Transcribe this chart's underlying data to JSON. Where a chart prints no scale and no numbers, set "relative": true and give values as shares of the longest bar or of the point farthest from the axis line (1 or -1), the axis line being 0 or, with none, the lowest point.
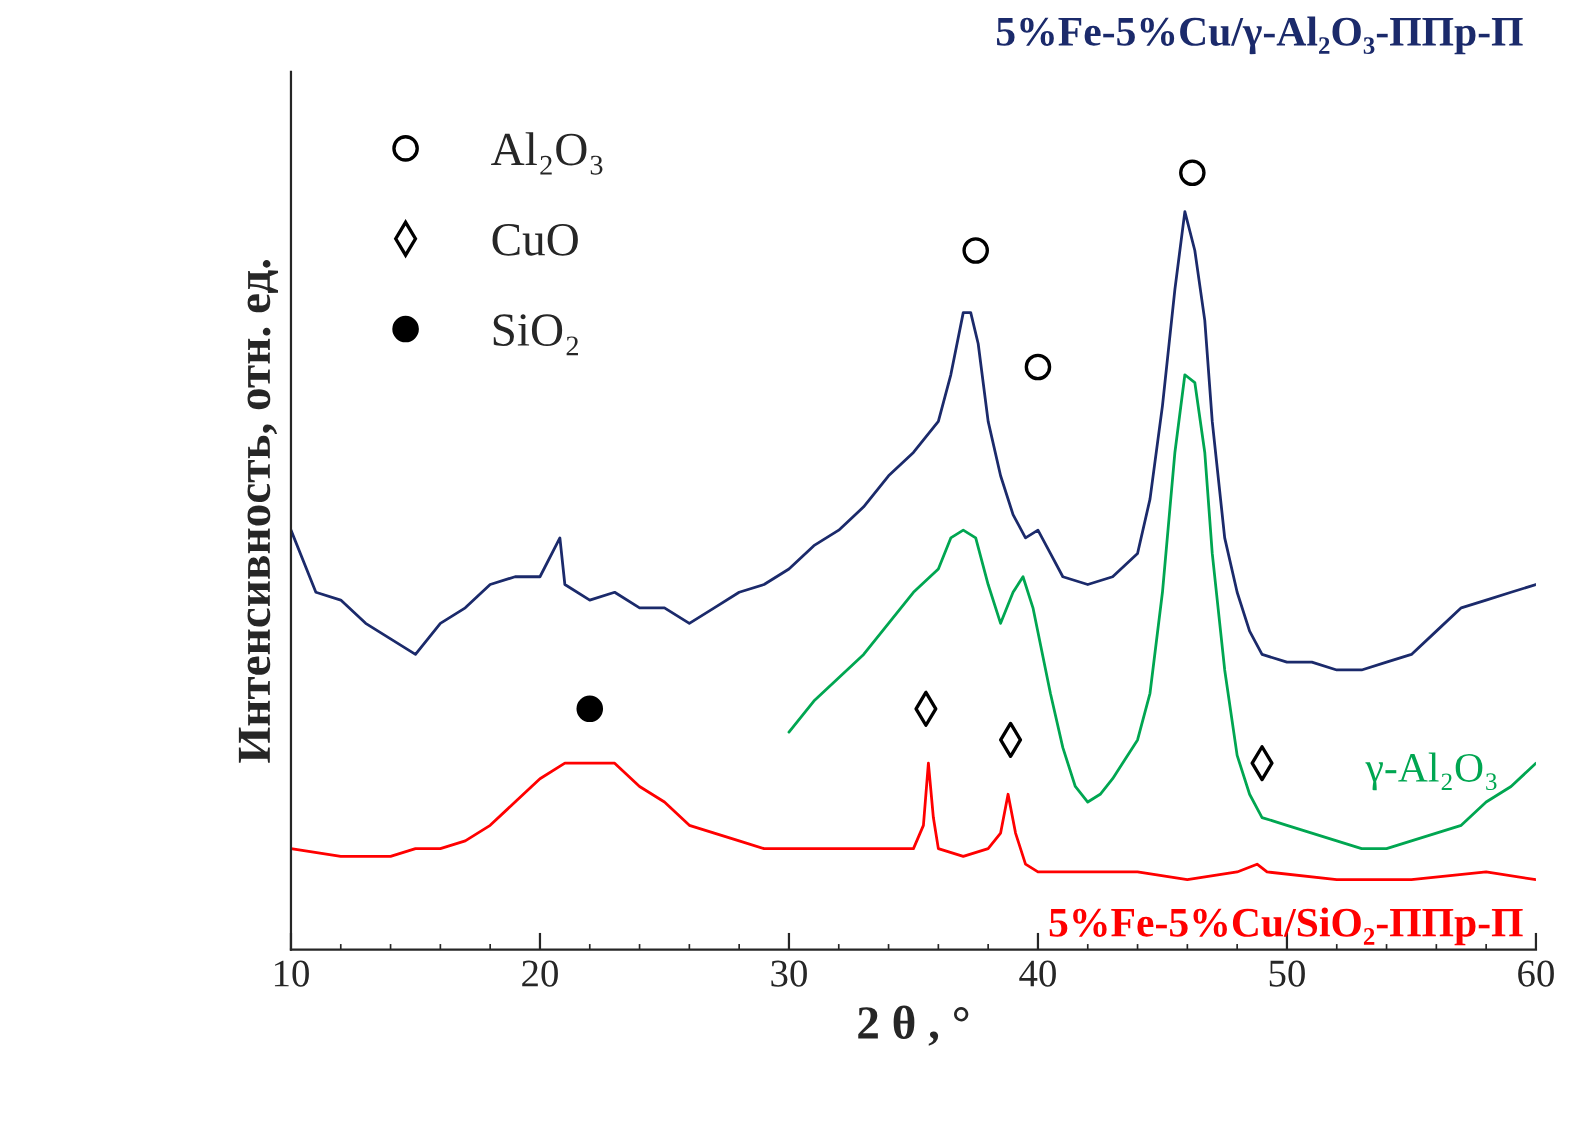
{
  "chart_data": {
    "type": "line",
    "relative": true,
    "xlabel": "2 θ , °",
    "ylabel": "Интенсивность, отн. ед.",
    "xlim": [
      10,
      60
    ],
    "xticks": [
      10,
      20,
      30,
      40,
      50,
      60
    ],
    "grid": false,
    "legend": "top left",
    "series": [
      {
        "name": "5%Fe-5%Cu/γ-Al₂O₃-ППр-П",
        "color": "#1b2a6b",
        "x": [
          10,
          11,
          12,
          13,
          14,
          15,
          16,
          17,
          18,
          19,
          20,
          20.8,
          21,
          22,
          23,
          24,
          25,
          26,
          27,
          28,
          29,
          30,
          31,
          32,
          33,
          34,
          35,
          36,
          36.5,
          37,
          37.3,
          37.6,
          38,
          38.5,
          39,
          39.5,
          40,
          40.5,
          41,
          42,
          43,
          44,
          44.5,
          45,
          45.5,
          45.9,
          46.3,
          46.7,
          47,
          47.5,
          48,
          48.5,
          49,
          50,
          51,
          52,
          53,
          54,
          55,
          56,
          57,
          58,
          59,
          60
        ],
        "values": [
          0.54,
          0.46,
          0.45,
          0.42,
          0.4,
          0.38,
          0.42,
          0.44,
          0.47,
          0.48,
          0.48,
          0.53,
          0.47,
          0.45,
          0.46,
          0.44,
          0.44,
          0.42,
          0.44,
          0.46,
          0.47,
          0.49,
          0.52,
          0.54,
          0.57,
          0.61,
          0.64,
          0.68,
          0.74,
          0.82,
          0.82,
          0.78,
          0.68,
          0.61,
          0.56,
          0.53,
          0.54,
          0.51,
          0.48,
          0.47,
          0.48,
          0.51,
          0.58,
          0.7,
          0.85,
          0.95,
          0.9,
          0.81,
          0.68,
          0.53,
          0.46,
          0.41,
          0.38,
          0.37,
          0.37,
          0.36,
          0.36,
          0.37,
          0.38,
          0.41,
          0.44,
          0.45,
          0.46,
          0.47
        ]
      },
      {
        "name": "γ-Al₂O₃",
        "color": "#00a651",
        "x": [
          30,
          31,
          32,
          33,
          34,
          35,
          36,
          36.5,
          37,
          37.5,
          38,
          38.5,
          39,
          39.4,
          39.8,
          40.5,
          41,
          41.5,
          42,
          42.5,
          43,
          44,
          44.5,
          45,
          45.5,
          45.9,
          46.3,
          46.7,
          47,
          47.5,
          48,
          48.5,
          49,
          50,
          51,
          52,
          53,
          54,
          55,
          56,
          57,
          58,
          59,
          60
        ],
        "values": [
          0.28,
          0.32,
          0.35,
          0.38,
          0.42,
          0.46,
          0.49,
          0.53,
          0.54,
          0.53,
          0.47,
          0.42,
          0.46,
          0.48,
          0.44,
          0.33,
          0.26,
          0.21,
          0.19,
          0.2,
          0.22,
          0.27,
          0.33,
          0.46,
          0.64,
          0.74,
          0.73,
          0.64,
          0.51,
          0.36,
          0.25,
          0.2,
          0.17,
          0.16,
          0.15,
          0.14,
          0.13,
          0.13,
          0.14,
          0.15,
          0.16,
          0.19,
          0.21,
          0.24
        ]
      },
      {
        "name": "5%Fe-5%Cu/SiO₂-ППр-П",
        "color": "#ff0000",
        "x": [
          10,
          12,
          14,
          15,
          16,
          17,
          18,
          19,
          20,
          21,
          22,
          23,
          24,
          25,
          26,
          27,
          28,
          29,
          30,
          32,
          34,
          35,
          35.4,
          35.6,
          35.8,
          36,
          37,
          38,
          38.5,
          38.8,
          39.1,
          39.5,
          40,
          42,
          44,
          46,
          48,
          48.8,
          49.2,
          52,
          55,
          58,
          60
        ],
        "values": [
          0.13,
          0.12,
          0.12,
          0.13,
          0.13,
          0.14,
          0.16,
          0.19,
          0.22,
          0.24,
          0.24,
          0.24,
          0.21,
          0.19,
          0.16,
          0.15,
          0.14,
          0.13,
          0.13,
          0.13,
          0.13,
          0.13,
          0.16,
          0.24,
          0.17,
          0.13,
          0.12,
          0.13,
          0.15,
          0.2,
          0.15,
          0.11,
          0.1,
          0.1,
          0.1,
          0.09,
          0.1,
          0.11,
          0.1,
          0.09,
          0.09,
          0.1,
          0.09
        ]
      },
      {
        "name": "Al₂O₃",
        "type": "scatter",
        "marker": "circle",
        "color": "#ffffff",
        "x": [
          37.5,
          40,
          46.2
        ],
        "values": [
          0.9,
          0.75,
          1.0
        ]
      },
      {
        "name": "CuO",
        "type": "scatter",
        "marker": "diamond",
        "color": "#ffffff",
        "x": [
          35.5,
          38.9,
          49
        ],
        "values": [
          0.31,
          0.27,
          0.24
        ]
      },
      {
        "name": "SiO₂",
        "type": "scatter",
        "marker": "circle",
        "color": "#000000",
        "x": [
          22
        ],
        "values": [
          0.31
        ]
      }
    ]
  }
}
